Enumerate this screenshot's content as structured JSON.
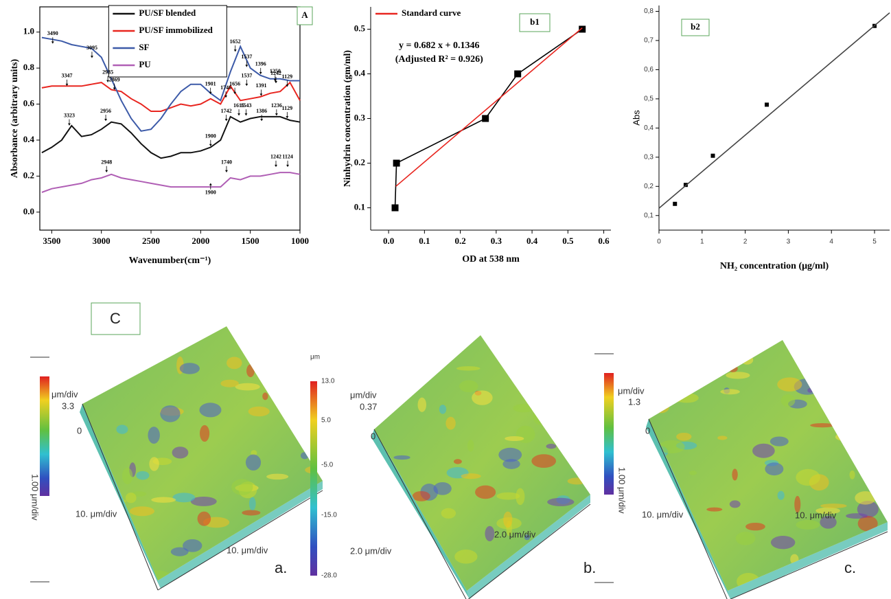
{
  "chart_data": [
    {
      "type": "line",
      "panel_label": "A",
      "frame": true,
      "legend": "top",
      "legend_frame": true,
      "xlabel": "Wavenumber(cm⁻¹)",
      "ylabel": "Absorbance (arbitrary units)",
      "xlim": [
        3620,
        1000
      ],
      "xticks": [
        3500,
        3000,
        2500,
        2000,
        1500,
        1000
      ],
      "ylim": [
        -0.1,
        1.14
      ],
      "yticks": [
        {
          "value": 0,
          "label": "0.0"
        },
        0.2,
        0.4,
        0.6,
        0.8,
        {
          "value": 1,
          "label": "1.0"
        }
      ],
      "x": [
        3600,
        3500,
        3400,
        3300,
        3200,
        3100,
        3000,
        2900,
        2800,
        2700,
        2600,
        2500,
        2400,
        2300,
        2200,
        2100,
        2000,
        1900,
        1800,
        1700,
        1600,
        1500,
        1400,
        1300,
        1200,
        1100,
        1000
      ],
      "series": [
        {
          "name": "PU/SF blended",
          "color": "#111111",
          "values": [
            0.33,
            0.36,
            0.4,
            0.48,
            0.42,
            0.43,
            0.46,
            0.5,
            0.49,
            0.44,
            0.38,
            0.33,
            0.3,
            0.31,
            0.33,
            0.33,
            0.34,
            0.36,
            0.4,
            0.53,
            0.5,
            0.52,
            0.53,
            0.53,
            0.53,
            0.51,
            0.5
          ]
        },
        {
          "name": "PU/SF immobilized",
          "color": "#e8251f",
          "values": [
            0.69,
            0.7,
            0.7,
            0.7,
            0.7,
            0.71,
            0.72,
            0.68,
            0.67,
            0.63,
            0.6,
            0.56,
            0.56,
            0.58,
            0.6,
            0.59,
            0.6,
            0.63,
            0.6,
            0.7,
            0.62,
            0.63,
            0.64,
            0.66,
            0.67,
            0.72,
            0.62
          ]
        },
        {
          "name": "SF",
          "color": "#3c5aa8",
          "values": [
            0.97,
            0.96,
            0.95,
            0.93,
            0.92,
            0.91,
            0.86,
            0.74,
            0.62,
            0.52,
            0.45,
            0.46,
            0.52,
            0.6,
            0.67,
            0.71,
            0.71,
            0.66,
            0.62,
            0.78,
            0.92,
            0.8,
            0.76,
            0.74,
            0.74,
            0.73,
            0.73
          ]
        },
        {
          "name": "PU",
          "color": "#b05fb5",
          "values": [
            0.11,
            0.13,
            0.14,
            0.15,
            0.16,
            0.18,
            0.19,
            0.21,
            0.19,
            0.18,
            0.17,
            0.16,
            0.15,
            0.14,
            0.14,
            0.14,
            0.14,
            0.14,
            0.14,
            0.19,
            0.18,
            0.2,
            0.2,
            0.21,
            0.22,
            0.22,
            0.21
          ]
        }
      ],
      "annotation_arrow": "down",
      "annotations": [
        {
          "x": 3490,
          "y": 0.99
        },
        {
          "x": 3095,
          "y": 0.91
        },
        {
          "x": 1652,
          "y": 0.945
        },
        {
          "x": 1537,
          "y": 0.86
        },
        {
          "x": 1396,
          "y": 0.82
        },
        {
          "x": 1250,
          "y": 0.78
        },
        {
          "x": 1242,
          "y": 0.77
        },
        {
          "x": 1129,
          "y": 0.75
        },
        {
          "x": 3347,
          "y": 0.755
        },
        {
          "x": 2935,
          "y": 0.775
        },
        {
          "x": 2869,
          "y": 0.733
        },
        {
          "x": 1746,
          "y": 0.69
        },
        {
          "x": 1656,
          "y": 0.71
        },
        {
          "x": 1901,
          "y": 0.71
        },
        {
          "x": 1537,
          "y": 0.755
        },
        {
          "x": 1391,
          "y": 0.7
        },
        {
          "x": 3323,
          "y": 0.535
        },
        {
          "x": 2956,
          "y": 0.56
        },
        {
          "x": 1900,
          "y": 0.42
        },
        {
          "x": 1742,
          "y": 0.56
        },
        {
          "x": 1615,
          "y": 0.59
        },
        {
          "x": 1543,
          "y": 0.59
        },
        {
          "x": 1386,
          "y": 0.56
        },
        {
          "x": 1236,
          "y": 0.59
        },
        {
          "x": 1129,
          "y": 0.575
        },
        {
          "x": 2948,
          "y": 0.275
        },
        {
          "x": 1740,
          "y": 0.275
        },
        {
          "x": 1242,
          "y": 0.305
        },
        {
          "x": 1124,
          "y": 0.305
        },
        {
          "x": 1900,
          "y": 0.107,
          "arrow": "up"
        }
      ]
    },
    {
      "type": "scatter",
      "panel_label": "b1",
      "frame": false,
      "legend": "top-left",
      "legend_frame": false,
      "xlabel": "OD at 538 nm",
      "ylabel": "Ninhydrin concentration (gm/ml)",
      "xlim": [
        -0.05,
        0.62
      ],
      "xticks": [
        {
          "value": 0,
          "label": "0.0"
        },
        0.1,
        0.2,
        0.3,
        0.4,
        0.5,
        0.6
      ],
      "ylim": [
        0.05,
        0.55
      ],
      "yticks": [
        0.1,
        0.2,
        0.3,
        0.4,
        0.5
      ],
      "series": [
        {
          "color": "#000000",
          "marker": "square",
          "line": true,
          "x": [
            0.018,
            0.022,
            0.27,
            0.36,
            0.54
          ],
          "values": [
            0.1,
            0.2,
            0.3,
            0.4,
            0.5
          ]
        },
        {
          "name": "Standard curve",
          "color": "#e8251f",
          "marker": "none",
          "line": true,
          "x": [
            0.02,
            0.54
          ],
          "values": [
            0.148,
            0.503
          ]
        }
      ],
      "annotations": [
        {
          "text": "y = 0.682 x + 0.1346",
          "x": 0.141,
          "y": 0.463
        },
        {
          "text": "(Adjusted R² = 0.926)",
          "x": 0.141,
          "y": 0.432
        }
      ]
    },
    {
      "type": "scatter",
      "panel_label": "b2",
      "frame": false,
      "sans_ticks": true,
      "xlabel": "NH₂ concentration  (μg/ml)",
      "ylabel": "Abs",
      "xlim": [
        0,
        5.35
      ],
      "xticks": [
        0,
        1,
        2,
        3,
        4,
        5
      ],
      "ylim": [
        0.05,
        0.82
      ],
      "yticks": [
        {
          "value": 0.1,
          "label": "0,1"
        },
        {
          "value": 0.2,
          "label": "0,2"
        },
        {
          "value": 0.3,
          "label": "0,3"
        },
        {
          "value": 0.4,
          "label": "0,4"
        },
        {
          "value": 0.5,
          "label": "0,5"
        },
        {
          "value": 0.6,
          "label": "0,6"
        },
        {
          "value": 0.7,
          "label": "0,7"
        },
        {
          "value": 0.8,
          "label": "0,8"
        }
      ],
      "series": [
        {
          "color": "#000000",
          "marker": "square",
          "line": false,
          "x": [
            0.37,
            0.62,
            1.25,
            2.5,
            5
          ],
          "values": [
            0.14,
            0.205,
            0.305,
            0.48,
            0.75
          ]
        },
        {
          "color": "#444444",
          "marker": "none",
          "line": true,
          "x": [
            0,
            5.35
          ],
          "values": [
            0.125,
            0.795
          ]
        }
      ]
    }
  ],
  "afm": {
    "panel_label": "C",
    "colorbar_unit": "μm",
    "colorbar_ticks": [
      "13.0",
      "5.0",
      "-5.0",
      "-15.0",
      "-28.0"
    ],
    "panels": [
      {
        "scale_label": "μm/div",
        "scale": "3.3",
        "zero": "0",
        "axis_y": "10. μm/div",
        "axis_x": "10. μm/div",
        "side": "1.00 μm/div",
        "label": "a."
      },
      {
        "scale_label": "μm/div",
        "scale": "0.37",
        "zero": "0",
        "axis_y": "2.0 μm/div",
        "axis_x": "2.0 μm/div",
        "label": "b."
      },
      {
        "scale_label": "μm/div",
        "scale": "1.3",
        "zero": "0",
        "axis_y": "10. μm/div",
        "axis_x": "10. μm/div",
        "side": "1.00 μm/div",
        "label": "c."
      }
    ]
  }
}
